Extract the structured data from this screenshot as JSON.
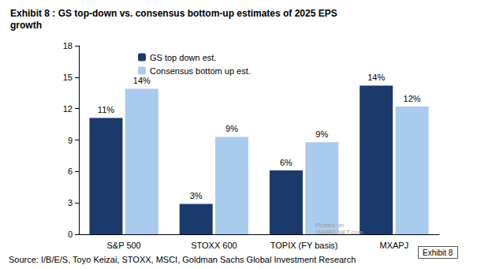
{
  "chart_data": {
    "type": "bar",
    "title": "Exhibit 8 : GS top-down vs. consensus bottom-up estimates of 2025 EPS\ngrowth",
    "categories": [
      "S&P 500",
      "STOXX 600",
      "TOPIX (FY basis)",
      "MXAPJ"
    ],
    "series": [
      {
        "name": "GS top down est.",
        "color": "#1b3a6b",
        "values": [
          11.1,
          2.9,
          6.1,
          14.2
        ],
        "value_labels": [
          "11%",
          "3%",
          "6%",
          "14%"
        ]
      },
      {
        "name": "Consensus bottom up est.",
        "color": "#a9cbee",
        "values": [
          13.9,
          9.3,
          8.8,
          12.2
        ],
        "value_labels": [
          "14%",
          "9%",
          "9%",
          "12%"
        ]
      }
    ],
    "ylim": [
      0,
      18
    ],
    "yticks": [
      0,
      3,
      6,
      9,
      12,
      15,
      18
    ],
    "grid": false,
    "legend": "upper left",
    "data_labels": true,
    "source": "Source: I/B/E/S, Toyo Keizai, STOXX, MSCI, Goldman Sachs Global Investment Research",
    "exhibit_label": "Exhibit 8",
    "watermark": "Posted on\nISABELNET.com"
  }
}
